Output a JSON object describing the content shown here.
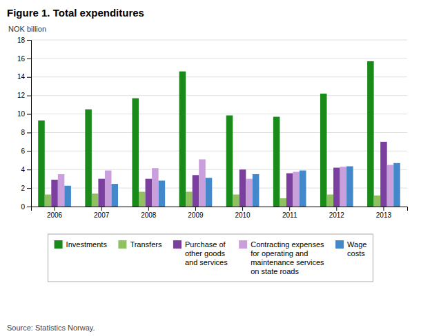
{
  "chart_data": {
    "type": "bar",
    "title": "Figure 1. Total expenditures",
    "y_label": "NOK billion",
    "categories": [
      "2006",
      "2007",
      "2008",
      "2009",
      "2010",
      "2011",
      "2012",
      "2013"
    ],
    "series": [
      {
        "name": "Investments",
        "color": "#1a8a1a",
        "values": [
          9.3,
          10.5,
          11.7,
          14.6,
          9.85,
          9.7,
          12.2,
          15.7
        ]
      },
      {
        "name": "Transfers",
        "color": "#90c060",
        "values": [
          1.3,
          1.4,
          1.6,
          1.6,
          1.3,
          0.9,
          1.3,
          1.2
        ]
      },
      {
        "name": "Purchase of\nother goods\nand services",
        "color": "#7b3fa0",
        "values": [
          2.9,
          3.0,
          3.0,
          3.4,
          4.0,
          3.6,
          4.2,
          7.0
        ]
      },
      {
        "name": "Contracting expenses\nfor operating and\nmaintenance services\non state roads",
        "color": "#c9a0dc",
        "values": [
          3.5,
          3.9,
          4.15,
          5.1,
          3.0,
          3.75,
          4.3,
          4.5
        ]
      },
      {
        "name": "Wage\ncosts",
        "color": "#4488cc",
        "values": [
          2.25,
          2.45,
          2.8,
          3.1,
          3.5,
          3.9,
          4.35,
          4.7
        ]
      }
    ],
    "ylim": [
      0,
      18
    ],
    "yticks": [
      0,
      2,
      4,
      6,
      8,
      10,
      12,
      14,
      16,
      18
    ],
    "grid": true,
    "legend": "bottom",
    "annotations": [
      "Source: Statistics Norway."
    ]
  }
}
